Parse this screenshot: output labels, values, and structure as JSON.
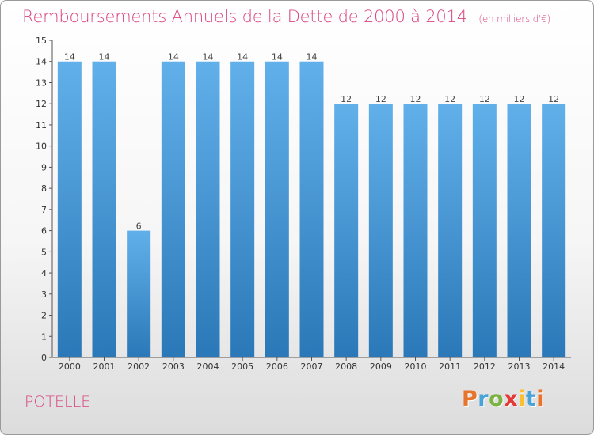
{
  "header": {
    "title": "Remboursements Annuels de la Dette de 2000 à 2014",
    "subtitle": "(en milliers d'€)"
  },
  "footer": {
    "commune": "POTELLE",
    "logo": "Proxiti"
  },
  "colors": {
    "title": "#d9467f",
    "bar_top": "#62b0ea",
    "bar_bottom": "#2b78b8",
    "logo_letters": [
      "#e8732a",
      "#4aa3d8",
      "#7cb342",
      "#e53935",
      "#fbc02d",
      "#4aa3d8",
      "#e8732a"
    ]
  },
  "chart_data": {
    "type": "bar",
    "title": "Remboursements Annuels de la Dette de 2000 à 2014",
    "subtitle": "(en milliers d'€)",
    "xlabel": "",
    "ylabel": "",
    "categories": [
      "2000",
      "2001",
      "2002",
      "2003",
      "2004",
      "2005",
      "2006",
      "2007",
      "2008",
      "2009",
      "2010",
      "2011",
      "2012",
      "2013",
      "2014"
    ],
    "values": [
      14,
      14,
      6,
      14,
      14,
      14,
      14,
      14,
      12,
      12,
      12,
      12,
      12,
      12,
      12
    ],
    "data_labels": [
      "14",
      "14",
      "6",
      "14",
      "14",
      "14",
      "14",
      "14",
      "12",
      "12",
      "12",
      "12",
      "12",
      "12",
      "12"
    ],
    "ylim": [
      0,
      15
    ],
    "yticks": [
      "0",
      "1",
      "2",
      "3",
      "4",
      "5",
      "6",
      "7",
      "8",
      "9",
      "10",
      "11",
      "12",
      "13",
      "14",
      "15"
    ],
    "grid": false,
    "legend": "none"
  }
}
